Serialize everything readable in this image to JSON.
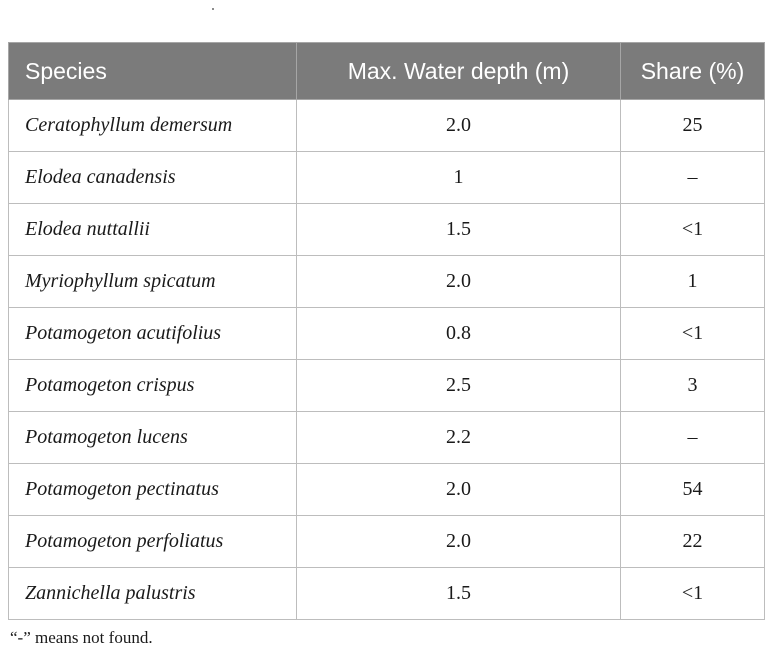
{
  "table": {
    "headers": {
      "species": "Species",
      "depth": "Max. Water depth (m)",
      "share": "Share (%)"
    },
    "rows": [
      {
        "species": "Ceratophyllum demersum",
        "depth": "2.0",
        "share": "25"
      },
      {
        "species": "Elodea canadensis",
        "depth": "1",
        "share": "–"
      },
      {
        "species": "Elodea nuttallii",
        "depth": "1.5",
        "share": "<1"
      },
      {
        "species": "Myriophyllum spicatum",
        "depth": "2.0",
        "share": "1"
      },
      {
        "species": "Potamogeton acutifolius",
        "depth": "0.8",
        "share": "<1"
      },
      {
        "species": "Potamogeton crispus",
        "depth": "2.5",
        "share": "3"
      },
      {
        "species": "Potamogeton lucens",
        "depth": "2.2",
        "share": "–"
      },
      {
        "species": "Potamogeton pectinatus",
        "depth": "2.0",
        "share": "54"
      },
      {
        "species": "Potamogeton perfoliatus",
        "depth": "2.0",
        "share": "22"
      },
      {
        "species": "Zannichella palustris",
        "depth": "1.5",
        "share": "<1"
      }
    ]
  },
  "footnote": "“-” means not found."
}
